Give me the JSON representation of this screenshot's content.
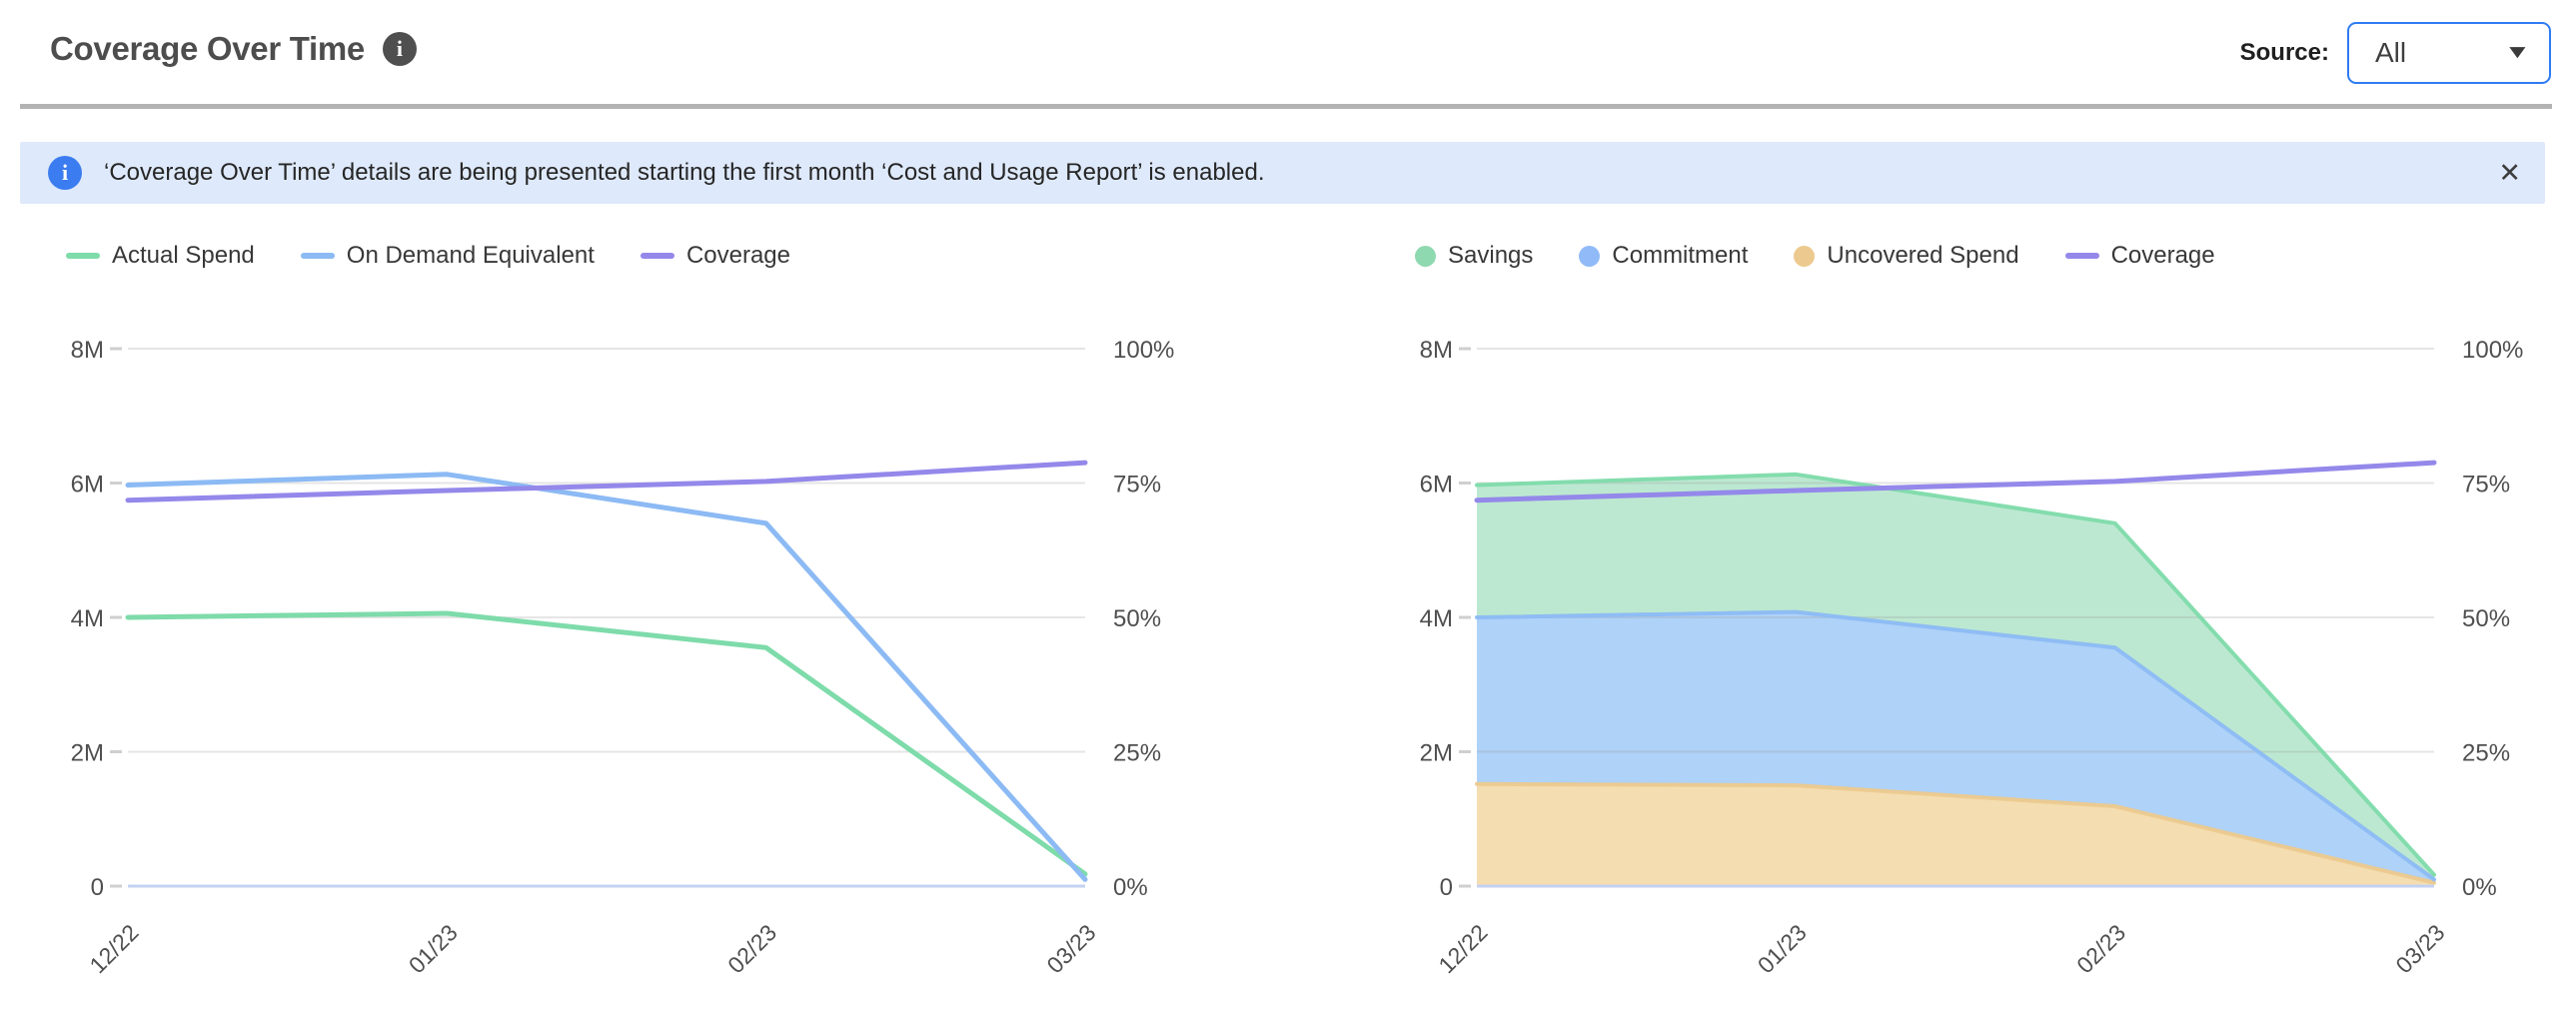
{
  "header": {
    "title": "Coverage Over Time",
    "source_label": "Source:",
    "source_value": "All"
  },
  "icons": {
    "header_info": "i",
    "banner_info": "i",
    "close": "✕",
    "chevron_down": "▼"
  },
  "banner": {
    "text": "‘Coverage Over Time’ details are being presented starting the first month ‘Cost and Usage Report’ is enabled."
  },
  "colors": {
    "green_line": "#7edbaa",
    "blue_line": "#8cbaf4",
    "purple_line": "#9488ea",
    "savings_fill": "#bce8d1",
    "commitment_fill": "#aed2f8",
    "uncovered_fill": "#f4ddb0",
    "uncovered_edge": "#ecc98e",
    "grid": "#9b9b9b",
    "zero_axis": "#c3d2f2",
    "tick_text": "#4f4f4f",
    "banner_bg": "#dee9fb",
    "accent_blue": "#2f7bf2"
  },
  "chart_data": [
    {
      "type": "line",
      "title": "Coverage Over Time - spend lines",
      "categories": [
        "12/22",
        "01/23",
        "02/23",
        "03/23"
      ],
      "grid": true,
      "legend_position": "top-left",
      "left_axis": {
        "range_max": 8000000,
        "ticks": [
          {
            "value": 0,
            "label": "0"
          },
          {
            "value": 2000000,
            "label": "2M"
          },
          {
            "value": 4000000,
            "label": "4M"
          },
          {
            "value": 6000000,
            "label": "6M"
          },
          {
            "value": 8000000,
            "label": "8M"
          }
        ]
      },
      "right_axis": {
        "range_max": 100,
        "ticks": [
          {
            "value": 0,
            "label": "0%"
          },
          {
            "value": 25,
            "label": "25%"
          },
          {
            "value": 50,
            "label": "50%"
          },
          {
            "value": 75,
            "label": "75%"
          },
          {
            "value": 100,
            "label": "100%"
          }
        ]
      },
      "legend": [
        {
          "label": "Actual Spend",
          "swatch": "line",
          "color": "#7edbaa"
        },
        {
          "label": "On Demand Equivalent",
          "swatch": "line",
          "color": "#8cbaf4"
        },
        {
          "label": "Coverage",
          "swatch": "line",
          "color": "#9488ea"
        }
      ],
      "series": [
        {
          "name": "Actual Spend",
          "kind": "line",
          "axis": "left",
          "color": "#7edbaa",
          "values": [
            4000000,
            4060000,
            3550000,
            180000
          ]
        },
        {
          "name": "On Demand Equivalent",
          "kind": "line",
          "axis": "left",
          "color": "#8cbaf4",
          "values": [
            5970000,
            6130000,
            5400000,
            100000
          ]
        },
        {
          "name": "Coverage",
          "kind": "line",
          "axis": "right",
          "color": "#9488ea",
          "values": [
            71.8,
            73.6,
            75.3,
            78.8
          ]
        }
      ]
    },
    {
      "type": "area",
      "title": "Coverage Over Time - stacked spend breakdown",
      "categories": [
        "12/22",
        "01/23",
        "02/23",
        "03/23"
      ],
      "grid": true,
      "legend_position": "top-left",
      "left_axis": {
        "range_max": 8000000,
        "ticks": [
          {
            "value": 0,
            "label": "0"
          },
          {
            "value": 2000000,
            "label": "2M"
          },
          {
            "value": 4000000,
            "label": "4M"
          },
          {
            "value": 6000000,
            "label": "6M"
          },
          {
            "value": 8000000,
            "label": "8M"
          }
        ]
      },
      "right_axis": {
        "range_max": 100,
        "ticks": [
          {
            "value": 0,
            "label": "0%"
          },
          {
            "value": 25,
            "label": "25%"
          },
          {
            "value": 50,
            "label": "50%"
          },
          {
            "value": 75,
            "label": "75%"
          },
          {
            "value": 100,
            "label": "100%"
          }
        ]
      },
      "legend": [
        {
          "label": "Savings",
          "swatch": "circle",
          "color": "#8fd9b0"
        },
        {
          "label": "Commitment",
          "swatch": "circle",
          "color": "#90bbf8"
        },
        {
          "label": "Uncovered Spend",
          "swatch": "circle",
          "color": "#ecc98e"
        },
        {
          "label": "Coverage",
          "swatch": "line",
          "color": "#9488ea"
        }
      ],
      "series": [
        {
          "name": "Uncovered Spend",
          "kind": "stacked-area",
          "axis": "left",
          "color": "#f4ddb0",
          "edge": "#ecc98e",
          "values": [
            1520000,
            1500000,
            1190000,
            50000
          ]
        },
        {
          "name": "Commitment",
          "kind": "stacked-area",
          "axis": "left",
          "color": "#aed2f8",
          "edge": "#8cbaf4",
          "values": [
            2480000,
            2580000,
            2360000,
            50000
          ]
        },
        {
          "name": "Savings",
          "kind": "stacked-area",
          "axis": "left",
          "color": "#bce8d1",
          "edge": "#7edbaa",
          "values": [
            1970000,
            2050000,
            1850000,
            70000
          ]
        },
        {
          "name": "Coverage",
          "kind": "line",
          "axis": "right",
          "color": "#9488ea",
          "values": [
            71.8,
            73.6,
            75.3,
            78.8
          ]
        }
      ]
    }
  ]
}
